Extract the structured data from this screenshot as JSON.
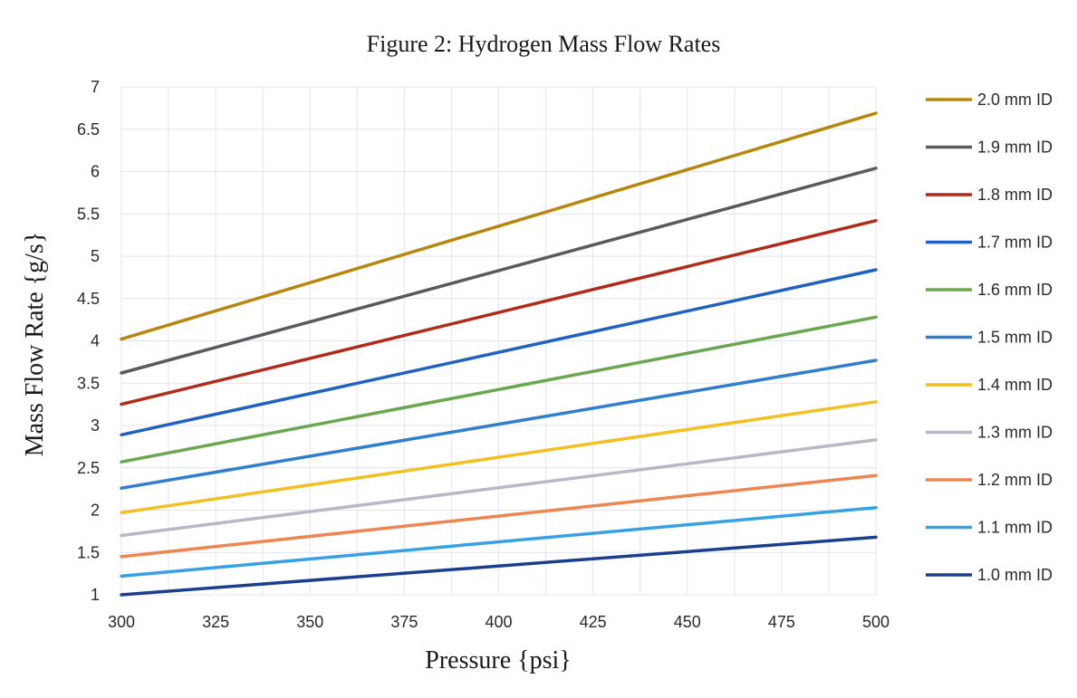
{
  "chart_data": {
    "type": "line",
    "title": "Figure 2:  Hydrogen Mass Flow Rates",
    "xlabel": "Pressure {psi}",
    "ylabel": "Mass Flow Rate {g/s}",
    "xlim": [
      300,
      500
    ],
    "ylim": [
      1,
      7
    ],
    "x_ticks": [
      "300",
      "325",
      "350",
      "375",
      "400",
      "425",
      "450",
      "475",
      "500"
    ],
    "y_ticks": [
      "1",
      "1.5",
      "2",
      "2.5",
      "3",
      "3.5",
      "4",
      "4.5",
      "5",
      "5.5",
      "6",
      "6.5",
      "7"
    ],
    "grid": true,
    "legend_position": "right",
    "x": [
      300,
      500
    ],
    "series": [
      {
        "name": "2.0 mm ID",
        "color": "#b8860b",
        "values": [
          4.02,
          6.69
        ]
      },
      {
        "name": "1.9 mm ID",
        "color": "#5a5a5e",
        "values": [
          3.62,
          6.04
        ]
      },
      {
        "name": "1.8 mm ID",
        "color": "#b22a18",
        "values": [
          3.25,
          5.42
        ]
      },
      {
        "name": "1.7 mm ID",
        "color": "#1f62c4",
        "values": [
          2.89,
          4.84
        ]
      },
      {
        "name": "1.6 mm ID",
        "color": "#6aa84f",
        "values": [
          2.57,
          4.28
        ]
      },
      {
        "name": "1.5 mm ID",
        "color": "#2f7fce",
        "values": [
          2.26,
          3.77
        ]
      },
      {
        "name": "1.4 mm ID",
        "color": "#f4c020",
        "values": [
          1.97,
          3.28
        ]
      },
      {
        "name": "1.3 mm ID",
        "color": "#b8b8c6",
        "values": [
          1.7,
          2.83
        ]
      },
      {
        "name": "1.2 mm ID",
        "color": "#ee8650",
        "values": [
          1.45,
          2.41
        ]
      },
      {
        "name": "1.1 mm ID",
        "color": "#36a1e3",
        "values": [
          1.22,
          2.03
        ]
      },
      {
        "name": "1.0 mm ID",
        "color": "#1b3f8f",
        "values": [
          1.0,
          1.68
        ]
      }
    ]
  }
}
